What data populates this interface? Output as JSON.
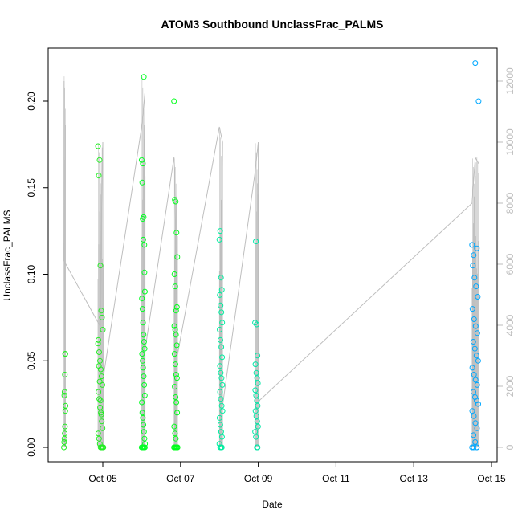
{
  "chart_data": {
    "type": "scatter",
    "title": "ATOM3 Southbound UnclassFrac_PALMS",
    "xlabel": "Date",
    "ylabel": "UnclassFrac_PALMS",
    "x_ticks": [
      "Oct 05",
      "Oct 07",
      "Oct 09",
      "Oct 11",
      "Oct 13",
      "Oct 15"
    ],
    "y_ticks": [
      "0.00",
      "0.05",
      "0.10",
      "0.15",
      "0.20"
    ],
    "y2_ticks": [
      "0",
      "2000",
      "4000",
      "6000",
      "8000",
      "10000",
      "12000"
    ],
    "xlim": [
      "2017-10-03",
      "2017-10-15"
    ],
    "ylim": [
      0,
      0.225
    ],
    "y2lim": [
      0,
      12500
    ],
    "colors": {
      "altitude_line": "#bebebe",
      "green": "#00ff1a",
      "cyan": "#00e6b0",
      "blue": "#00a0ff"
    },
    "altitude_track": [
      [
        "2017-10-04 00:00",
        6100
      ],
      [
        "2017-10-04 00:05",
        12000
      ],
      [
        "2017-10-04 00:10",
        6100
      ],
      [
        "2017-10-04 22:00",
        4000
      ],
      [
        "2017-10-05 00:00",
        10000
      ],
      [
        "2017-10-04 22:00",
        1500
      ],
      [
        "2017-10-06 00:00",
        10500
      ],
      [
        "2017-10-06 02:00",
        11600
      ],
      [
        "2017-10-06 01:00",
        2800
      ],
      [
        "2017-10-06 20:00",
        9500
      ],
      [
        "2017-10-06 20:30",
        9000
      ],
      [
        "2017-10-06 22:00",
        3000
      ],
      [
        "2017-10-08 00:00",
        10500
      ],
      [
        "2017-10-08 02:00",
        10000
      ],
      [
        "2017-10-08 01:00",
        1000
      ],
      [
        "2017-10-08 22:00",
        9000
      ],
      [
        "2017-10-09 00:00",
        10000
      ],
      [
        "2017-10-09 00:00",
        1500
      ],
      [
        "2017-10-14 12:00",
        8000
      ],
      [
        "2017-10-14 14:00",
        9500
      ],
      [
        "2017-10-14 16:00",
        9300
      ]
    ],
    "series": [
      {
        "color": "#22ee22",
        "points": [
          [
            "2017-10-04 00:00",
            0.0
          ],
          [
            "2017-10-04 00:10",
            0.003
          ],
          [
            "2017-10-04 00:20",
            0.005
          ],
          [
            "2017-10-04 00:30",
            0.008
          ],
          [
            "2017-10-04 00:40",
            0.012
          ],
          [
            "2017-10-04 00:50",
            0.021
          ],
          [
            "2017-10-04 01:00",
            0.024
          ],
          [
            "2017-10-04 00:15",
            0.03
          ],
          [
            "2017-10-04 00:25",
            0.032
          ],
          [
            "2017-10-04 00:35",
            0.042
          ],
          [
            "2017-10-04 00:45",
            0.054
          ],
          [
            "2017-10-04 00:55",
            0.054
          ],
          [
            "2017-10-04 21:00",
            0.174
          ],
          [
            "2017-10-04 21:30",
            0.157
          ],
          [
            "2017-10-04 22:00",
            0.166
          ],
          [
            "2017-10-04 22:30",
            0.105
          ],
          [
            "2017-10-04 23:00",
            0.079
          ],
          [
            "2017-10-04 23:30",
            0.075
          ],
          [
            "2017-10-05 00:00",
            0.068
          ],
          [
            "2017-10-04 21:15",
            0.062
          ],
          [
            "2017-10-04 21:45",
            0.055
          ],
          [
            "2017-10-04 22:15",
            0.05
          ],
          [
            "2017-10-04 22:45",
            0.045
          ],
          [
            "2017-10-04 23:15",
            0.041
          ],
          [
            "2017-10-04 23:45",
            0.036
          ],
          [
            "2017-10-04 21:20",
            0.032
          ],
          [
            "2017-10-04 21:50",
            0.028
          ],
          [
            "2017-10-04 22:20",
            0.023
          ],
          [
            "2017-10-04 22:50",
            0.02
          ],
          [
            "2017-10-04 23:20",
            0.015
          ],
          [
            "2017-10-04 23:50",
            0.011
          ],
          [
            "2017-10-04 21:10",
            0.008
          ],
          [
            "2017-10-04 21:40",
            0.005
          ],
          [
            "2017-10-04 22:10",
            0.002
          ],
          [
            "2017-10-04 22:40",
            0.0
          ],
          [
            "2017-10-04 23:10",
            0.0
          ],
          [
            "2017-10-04 23:40",
            0.0
          ],
          [
            "2017-10-05 00:10",
            0.0
          ],
          [
            "2017-10-05 00:20",
            0.0
          ],
          [
            "2017-10-04 21:05",
            0.06
          ],
          [
            "2017-10-04 21:35",
            0.047
          ],
          [
            "2017-10-04 22:05",
            0.038
          ],
          [
            "2017-10-04 22:35",
            0.027
          ],
          [
            "2017-10-04 23:05",
            0.019
          ]
        ]
      },
      {
        "color": "#00ff22",
        "points": [
          [
            "2017-10-06 00:00",
            0.166
          ],
          [
            "2017-10-06 00:20",
            0.153
          ],
          [
            "2017-10-06 00:40",
            0.132
          ],
          [
            "2017-10-06 01:00",
            0.12
          ],
          [
            "2017-10-06 01:20",
            0.214
          ],
          [
            "2017-10-06 01:40",
            0.117
          ],
          [
            "2017-10-06 02:00",
            0.09
          ],
          [
            "2017-10-06 00:10",
            0.086
          ],
          [
            "2017-10-06 00:30",
            0.08
          ],
          [
            "2017-10-06 00:50",
            0.072
          ],
          [
            "2017-10-06 01:10",
            0.065
          ],
          [
            "2017-10-06 01:30",
            0.061
          ],
          [
            "2017-10-06 01:50",
            0.057
          ],
          [
            "2017-10-06 00:15",
            0.054
          ],
          [
            "2017-10-06 00:35",
            0.05
          ],
          [
            "2017-10-06 00:55",
            0.046
          ],
          [
            "2017-10-06 01:15",
            0.041
          ],
          [
            "2017-10-06 01:35",
            0.036
          ],
          [
            "2017-10-06 01:55",
            0.03
          ],
          [
            "2017-10-06 00:05",
            0.026
          ],
          [
            "2017-10-06 00:25",
            0.02
          ],
          [
            "2017-10-06 00:45",
            0.017
          ],
          [
            "2017-10-06 01:05",
            0.013
          ],
          [
            "2017-10-06 01:25",
            0.009
          ],
          [
            "2017-10-06 01:45",
            0.005
          ],
          [
            "2017-10-06 02:05",
            0.002
          ],
          [
            "2017-10-06 00:00",
            0.0
          ],
          [
            "2017-10-06 00:30",
            0.0
          ],
          [
            "2017-10-06 01:00",
            0.0
          ],
          [
            "2017-10-06 01:30",
            0.0
          ],
          [
            "2017-10-06 02:00",
            0.0
          ],
          [
            "2017-10-06 00:45",
            0.164
          ],
          [
            "2017-10-06 01:15",
            0.133
          ],
          [
            "2017-10-06 01:45",
            0.101
          ]
        ]
      },
      {
        "color": "#00ff1a",
        "points": [
          [
            "2017-10-06 20:00",
            0.2
          ],
          [
            "2017-10-06 20:30",
            0.143
          ],
          [
            "2017-10-06 21:00",
            0.142
          ],
          [
            "2017-10-06 21:30",
            0.124
          ],
          [
            "2017-10-06 22:00",
            0.11
          ],
          [
            "2017-10-06 20:15",
            0.1
          ],
          [
            "2017-10-06 20:45",
            0.093
          ],
          [
            "2017-10-06 21:15",
            0.079
          ],
          [
            "2017-10-06 21:45",
            0.081
          ],
          [
            "2017-10-06 20:10",
            0.07
          ],
          [
            "2017-10-06 20:40",
            0.068
          ],
          [
            "2017-10-06 21:10",
            0.065
          ],
          [
            "2017-10-06 21:40",
            0.059
          ],
          [
            "2017-10-06 20:20",
            0.054
          ],
          [
            "2017-10-06 20:50",
            0.048
          ],
          [
            "2017-10-06 21:20",
            0.042
          ],
          [
            "2017-10-06 21:50",
            0.04
          ],
          [
            "2017-10-06 20:25",
            0.035
          ],
          [
            "2017-10-06 20:55",
            0.029
          ],
          [
            "2017-10-06 21:25",
            0.026
          ],
          [
            "2017-10-06 21:55",
            0.02
          ],
          [
            "2017-10-06 20:05",
            0.012
          ],
          [
            "2017-10-06 20:35",
            0.008
          ],
          [
            "2017-10-06 21:05",
            0.005
          ],
          [
            "2017-10-06 20:00",
            0.0
          ],
          [
            "2017-10-06 20:30",
            0.0
          ],
          [
            "2017-10-06 21:00",
            0.0
          ],
          [
            "2017-10-06 21:30",
            0.0
          ],
          [
            "2017-10-06 22:00",
            0.0
          ],
          [
            "2017-10-06 22:10",
            0.0
          ]
        ]
      },
      {
        "color": "#00eea0",
        "points": [
          [
            "2017-10-08 00:00",
            0.12
          ],
          [
            "2017-10-08 00:30",
            0.125
          ],
          [
            "2017-10-08 01:00",
            0.098
          ],
          [
            "2017-10-08 01:30",
            0.091
          ],
          [
            "2017-10-08 00:15",
            0.088
          ],
          [
            "2017-10-08 00:45",
            0.082
          ],
          [
            "2017-10-08 01:15",
            0.078
          ],
          [
            "2017-10-08 01:45",
            0.072
          ],
          [
            "2017-10-08 00:10",
            0.068
          ],
          [
            "2017-10-08 00:40",
            0.062
          ],
          [
            "2017-10-08 01:10",
            0.058
          ],
          [
            "2017-10-08 01:40",
            0.052
          ],
          [
            "2017-10-08 00:20",
            0.047
          ],
          [
            "2017-10-08 00:50",
            0.043
          ],
          [
            "2017-10-08 01:20",
            0.04
          ],
          [
            "2017-10-08 01:50",
            0.036
          ],
          [
            "2017-10-08 00:25",
            0.032
          ],
          [
            "2017-10-08 00:55",
            0.028
          ],
          [
            "2017-10-08 01:25",
            0.024
          ],
          [
            "2017-10-08 01:55",
            0.021
          ],
          [
            "2017-10-08 00:05",
            0.017
          ],
          [
            "2017-10-08 00:35",
            0.013
          ],
          [
            "2017-10-08 01:05",
            0.009
          ],
          [
            "2017-10-08 01:35",
            0.006
          ],
          [
            "2017-10-08 00:00",
            0.002
          ],
          [
            "2017-10-08 00:30",
            0.0
          ],
          [
            "2017-10-08 01:00",
            0.0
          ],
          [
            "2017-10-08 01:30",
            0.0
          ]
        ]
      },
      {
        "color": "#00e6a6",
        "points": [
          [
            "2017-10-08 22:00",
            0.072
          ],
          [
            "2017-10-08 22:30",
            0.119
          ],
          [
            "2017-10-08 23:00",
            0.071
          ],
          [
            "2017-10-08 23:30",
            0.053
          ],
          [
            "2017-10-08 22:15",
            0.048
          ],
          [
            "2017-10-08 22:45",
            0.043
          ],
          [
            "2017-10-08 23:15",
            0.04
          ],
          [
            "2017-10-08 23:45",
            0.037
          ],
          [
            "2017-10-08 22:10",
            0.033
          ],
          [
            "2017-10-08 22:40",
            0.03
          ],
          [
            "2017-10-08 23:10",
            0.027
          ],
          [
            "2017-10-08 23:40",
            0.024
          ],
          [
            "2017-10-08 22:20",
            0.021
          ],
          [
            "2017-10-08 22:50",
            0.018
          ],
          [
            "2017-10-08 23:20",
            0.015
          ],
          [
            "2017-10-08 23:50",
            0.012
          ],
          [
            "2017-10-08 22:05",
            0.009
          ],
          [
            "2017-10-08 22:35",
            0.006
          ],
          [
            "2017-10-08 23:05",
            0.0
          ],
          [
            "2017-10-08 23:35",
            0.0
          ]
        ]
      },
      {
        "color": "#00a8ff",
        "points": [
          [
            "2017-10-14 14:00",
            0.222
          ],
          [
            "2017-10-14 16:00",
            0.2
          ],
          [
            "2017-10-14 12:00",
            0.117
          ],
          [
            "2017-10-14 13:00",
            0.111
          ],
          [
            "2017-10-14 15:00",
            0.115
          ],
          [
            "2017-10-14 12:30",
            0.105
          ],
          [
            "2017-10-14 13:30",
            0.098
          ],
          [
            "2017-10-14 14:30",
            0.093
          ],
          [
            "2017-10-14 15:30",
            0.087
          ],
          [
            "2017-10-14 12:15",
            0.08
          ],
          [
            "2017-10-14 13:15",
            0.074
          ],
          [
            "2017-10-14 14:15",
            0.07
          ],
          [
            "2017-10-14 15:15",
            0.066
          ],
          [
            "2017-10-14 12:45",
            0.061
          ],
          [
            "2017-10-14 13:45",
            0.057
          ],
          [
            "2017-10-14 14:45",
            0.053
          ],
          [
            "2017-10-14 15:45",
            0.05
          ],
          [
            "2017-10-14 12:10",
            0.046
          ],
          [
            "2017-10-14 13:10",
            0.042
          ],
          [
            "2017-10-14 14:10",
            0.039
          ],
          [
            "2017-10-14 15:10",
            0.036
          ],
          [
            "2017-10-14 12:50",
            0.032
          ],
          [
            "2017-10-14 13:50",
            0.029
          ],
          [
            "2017-10-14 14:50",
            0.027
          ],
          [
            "2017-10-14 15:50",
            0.025
          ],
          [
            "2017-10-14 12:05",
            0.021
          ],
          [
            "2017-10-14 13:05",
            0.018
          ],
          [
            "2017-10-14 14:05",
            0.014
          ],
          [
            "2017-10-14 15:05",
            0.011
          ],
          [
            "2017-10-14 12:55",
            0.007
          ],
          [
            "2017-10-14 13:55",
            0.003
          ],
          [
            "2017-10-14 14:55",
            0.0
          ],
          [
            "2017-10-14 12:00",
            0.0
          ],
          [
            "2017-10-14 13:00",
            0.0
          ],
          [
            "2017-10-14 15:00",
            0.0
          ]
        ]
      }
    ]
  }
}
